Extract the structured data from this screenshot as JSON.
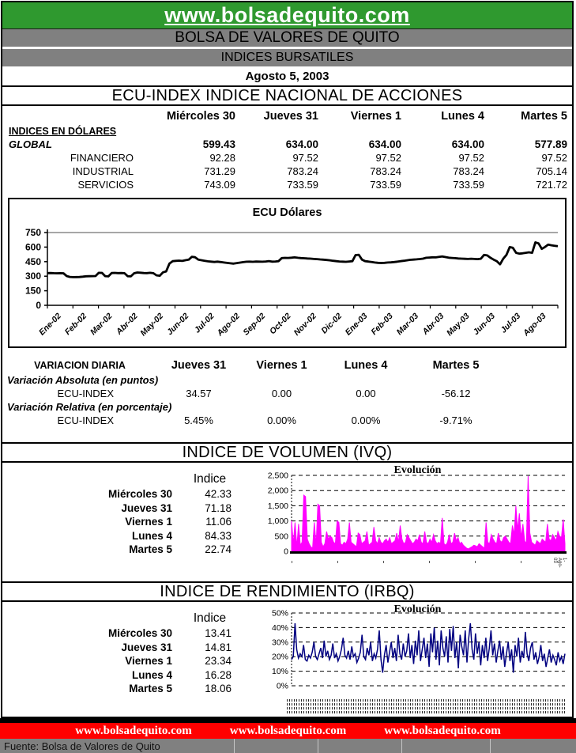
{
  "header": {
    "site": "www.bolsadequito.com",
    "title1": "BOLSA DE VALORES DE QUITO",
    "title2": "INDICES BURSATILES",
    "date": "Agosto 5, 2003"
  },
  "colors": {
    "green": "#2F992F",
    "gray": "#808080",
    "red": "#FF0000",
    "magenta": "#FF00FF",
    "navy": "#000080",
    "black": "#000000"
  },
  "ecu_section": {
    "title": "ECU-INDEX  INDICE NACIONAL DE ACCIONES",
    "days": [
      "Miércoles 30",
      "Jueves 31",
      "Viernes 1",
      "Lunes 4",
      "Martes 5"
    ],
    "group_label": "INDICES EN DÓLARES",
    "rows": [
      {
        "label": "GLOBAL",
        "values": [
          "599.43",
          "634.00",
          "634.00",
          "634.00",
          "577.89"
        ]
      },
      {
        "label": "FINANCIERO",
        "values": [
          "92.28",
          "97.52",
          "97.52",
          "97.52",
          "97.52"
        ]
      },
      {
        "label": "INDUSTRIAL",
        "values": [
          "731.29",
          "783.24",
          "783.24",
          "783.24",
          "705.14"
        ]
      },
      {
        "label": "SERVICIOS",
        "values": [
          "743.09",
          "733.59",
          "733.59",
          "733.59",
          "721.72"
        ]
      }
    ]
  },
  "variacion": {
    "title": "VARIACION DIARIA",
    "days": [
      "Jueves 31",
      "Viernes 1",
      "Lunes 4",
      "Martes 5"
    ],
    "absoluta_label": "Variación Absoluta (en puntos)",
    "relativa_label": "Variación Relativa (en porcentaje)",
    "row_label": "ECU-INDEX",
    "absoluta": [
      "34.57",
      "0.00",
      "0.00",
      "-56.12"
    ],
    "relativa": [
      "5.45%",
      "0.00%",
      "0.00%",
      "-9.71%"
    ]
  },
  "ivq": {
    "title": "INDICE DE VOLUMEN (IVQ)",
    "col_header": "Indice",
    "rows": [
      [
        "Miércoles 30",
        "42.33"
      ],
      [
        "Jueves 31",
        "71.18"
      ],
      [
        "Viernes 1",
        "11.06"
      ],
      [
        "Lunes 4",
        "84.33"
      ],
      [
        "Martes 5",
        "22.74"
      ]
    ]
  },
  "irbq": {
    "title": "INDICE DE RENDIMIENTO (IRBQ)",
    "col_header": "Indice",
    "rows": [
      [
        "Miércoles 30",
        "13.41"
      ],
      [
        "Jueves 31",
        "14.81"
      ],
      [
        "Viernes 1",
        "23.34"
      ],
      [
        "Lunes 4",
        "16.28"
      ],
      [
        "Martes 5",
        "18.06"
      ]
    ]
  },
  "footer": {
    "links": [
      "www.bolsadequito.com",
      "www.bolsadequito.com",
      "www.bolsadequito.com"
    ],
    "fuente": "Fuente: Bolsa de Valores de Quito"
  },
  "chart_data": [
    {
      "type": "line",
      "title": "ECU Dólares",
      "xlabel": "",
      "ylabel": "",
      "ylim": [
        0,
        750
      ],
      "yticks": [
        0,
        150,
        300,
        450,
        600,
        750
      ],
      "ytick_labels": [
        "0",
        "150",
        "300",
        "450",
        "600",
        "750"
      ],
      "x_labels": [
        "Ene-02",
        "Feb-02",
        "Mar-02",
        "Abr-02",
        "May-02",
        "Jun-02",
        "Jul-02",
        "Ago-02",
        "Sep-02",
        "Oct-02",
        "Nov-02",
        "Dic-02",
        "Ene-03",
        "Feb-03",
        "Mar-03",
        "Abr-03",
        "May-03",
        "Jun-03",
        "Jul-03",
        "Ago-03"
      ],
      "line_color": "#000000",
      "grid": "top-line-only",
      "values": [
        332,
        333,
        331,
        330,
        331,
        330,
        302,
        293,
        290,
        291,
        292,
        295,
        299,
        300,
        301,
        302,
        335,
        334,
        301,
        298,
        333,
        334,
        332,
        333,
        331,
        300,
        298,
        330,
        338,
        336,
        333,
        332,
        335,
        331,
        309,
        305,
        340,
        350,
        430,
        455,
        458,
        461,
        457,
        465,
        470,
        500,
        496,
        470,
        465,
        459,
        453,
        450,
        447,
        450,
        446,
        441,
        437,
        433,
        430,
        435,
        440,
        445,
        449,
        450,
        448,
        451,
        450,
        449,
        452,
        456,
        450,
        452,
        455,
        487,
        489,
        488,
        491,
        494,
        490,
        487,
        485,
        483,
        481,
        478,
        476,
        473,
        470,
        467,
        464,
        459,
        455,
        452,
        450,
        448,
        452,
        455,
        518,
        521,
        470,
        455,
        451,
        446,
        441,
        438,
        436,
        438,
        441,
        443,
        446,
        450,
        455,
        459,
        464,
        469,
        471,
        474,
        477,
        481,
        490,
        492,
        495,
        494,
        499,
        504,
        497,
        491,
        488,
        486,
        483,
        481,
        479,
        478,
        480,
        478,
        476,
        480,
        519,
        514,
        490,
        471,
        455,
        422,
        480,
        520,
        600,
        593,
        541,
        532,
        536,
        541,
        546,
        541,
        649,
        638,
        582,
        601,
        625,
        619,
        614,
        609
      ]
    },
    {
      "type": "area",
      "title": "Evolución",
      "section": "IVQ",
      "ylim": [
        0,
        2500
      ],
      "yticks": [
        0,
        500,
        1000,
        1500,
        2000,
        2500
      ],
      "ytick_labels": [
        "0",
        "500",
        "1,000",
        "1,500",
        "2,000",
        "2,500"
      ],
      "color": "#FF00FF",
      "grid": "dashed",
      "right_label": "1-Ago-03",
      "values": [
        1000,
        250,
        950,
        150,
        900,
        200,
        300,
        1850,
        1800,
        400,
        250,
        150,
        100,
        950,
        200,
        1550,
        1500,
        300,
        150,
        250,
        650,
        400,
        500,
        450,
        300,
        250,
        1000,
        950,
        250,
        200,
        300,
        250,
        400,
        950,
        300,
        250,
        200,
        150,
        600,
        550,
        250,
        300,
        350,
        650,
        200,
        250,
        300,
        800,
        350,
        250,
        450,
        300,
        250,
        350,
        400,
        300,
        450,
        250,
        300,
        350,
        600,
        300,
        850,
        400,
        250,
        300,
        550,
        450,
        350,
        250,
        300,
        400,
        350,
        550,
        300,
        250,
        650,
        300,
        250,
        400,
        300,
        550,
        350,
        250,
        300,
        250,
        1100,
        250,
        200,
        300,
        550,
        250,
        300,
        600,
        350,
        450,
        250,
        300,
        200,
        150,
        100,
        80,
        120,
        150,
        200,
        180,
        150,
        250,
        200,
        150,
        100,
        950,
        300,
        250,
        550,
        400,
        300,
        250,
        600,
        350,
        300,
        450,
        500,
        400,
        300,
        250,
        850,
        550,
        1500,
        700,
        1250,
        450,
        900,
        350,
        250,
        2480,
        600,
        300,
        250,
        200,
        350,
        300,
        250,
        400,
        350,
        300,
        900,
        400,
        350,
        550,
        450,
        350,
        650,
        500,
        450,
        1050,
        250
      ]
    },
    {
      "type": "line",
      "title": "Evolución",
      "section": "IRBQ",
      "ylim": [
        0,
        50
      ],
      "yticks": [
        0,
        10,
        20,
        30,
        40,
        50
      ],
      "ytick_labels": [
        "0%",
        "10%",
        "20%",
        "30%",
        "40%",
        "50%"
      ],
      "color": "#000080",
      "grid": "dashed",
      "values": [
        18,
        20,
        43,
        25,
        19,
        22,
        20,
        28,
        18,
        17,
        21,
        19,
        23,
        30,
        20,
        18,
        22,
        26,
        19,
        31,
        20,
        24,
        18,
        21,
        29,
        19,
        22,
        17,
        20,
        25,
        33,
        21,
        19,
        24,
        18,
        27,
        20,
        22,
        16,
        19,
        23,
        35,
        20,
        18,
        26,
        21,
        30,
        17,
        22,
        19,
        25,
        38,
        18,
        9,
        21,
        28,
        16,
        23,
        30,
        19,
        26,
        17,
        35,
        22,
        18,
        29,
        20,
        24,
        36,
        19,
        28,
        15,
        31,
        21,
        38,
        17,
        25,
        33,
        19,
        29,
        13,
        36,
        23,
        40,
        18,
        31,
        14,
        38,
        26,
        20,
        34,
        16,
        39,
        24,
        41,
        19,
        30,
        12,
        35,
        27,
        21,
        38,
        16,
        32,
        43,
        25,
        18,
        36,
        22,
        30,
        14,
        28,
        19,
        33,
        17,
        26,
        38,
        21,
        29,
        16,
        24,
        31,
        18,
        27,
        13,
        22,
        30,
        17,
        25,
        9,
        28,
        20,
        33,
        16,
        24,
        19,
        37,
        22,
        17,
        26,
        30,
        18,
        23,
        15,
        20,
        28,
        17,
        22,
        13,
        19,
        25,
        16,
        21,
        18,
        14,
        23,
        17,
        20,
        15,
        22
      ]
    }
  ]
}
